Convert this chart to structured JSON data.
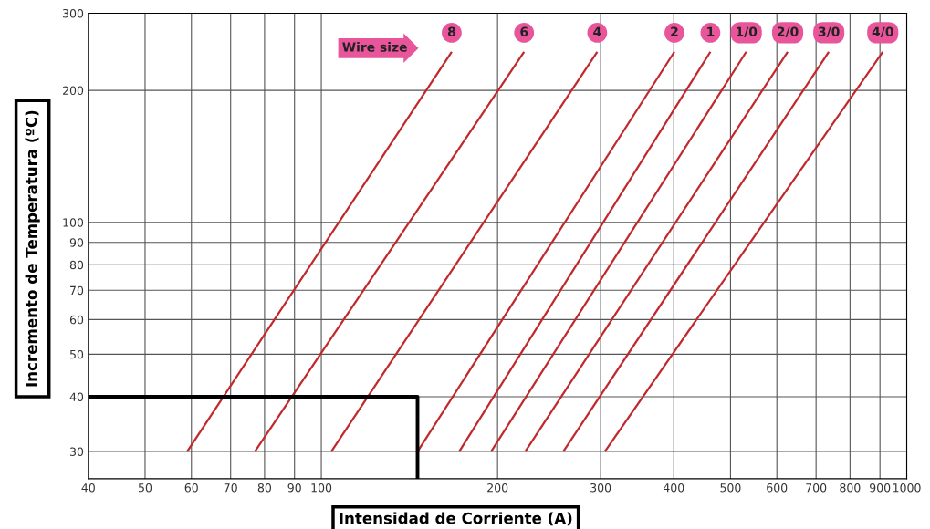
{
  "chart_data": {
    "type": "line",
    "xlabel": "Intensidad de Corriente (A)",
    "ylabel": "Incremento de Temperatura (ºC)",
    "annotations": [
      "Wire size"
    ],
    "log": "xy",
    "grid": true,
    "xlim": [
      40,
      1000
    ],
    "xticks": [
      40,
      50,
      60,
      70,
      80,
      90,
      100,
      200,
      300,
      400,
      500,
      600,
      700,
      800,
      900,
      1000
    ],
    "ylim": [
      26,
      300
    ],
    "yticks": [
      30,
      40,
      50,
      60,
      70,
      80,
      90,
      100,
      200,
      300
    ],
    "series": [
      {
        "name": "8",
        "color": "#c0282d",
        "x": [
          59,
          167
        ],
        "values": [
          30,
          245
        ]
      },
      {
        "name": "6",
        "color": "#c0282d",
        "x": [
          77,
          222
        ],
        "values": [
          30,
          245
        ]
      },
      {
        "name": "4",
        "color": "#c0282d",
        "x": [
          104,
          296
        ],
        "values": [
          30,
          245
        ]
      },
      {
        "name": "2",
        "color": "#c0282d",
        "x": [
          146,
          401
        ],
        "values": [
          30,
          245
        ]
      },
      {
        "name": "1",
        "color": "#c0282d",
        "x": [
          172,
          462
        ],
        "values": [
          30,
          245
        ]
      },
      {
        "name": "1/0",
        "color": "#c0282d",
        "x": [
          195,
          532
        ],
        "values": [
          30,
          245
        ]
      },
      {
        "name": "2/0",
        "color": "#c0282d",
        "x": [
          223,
          626
        ],
        "values": [
          30,
          245
        ]
      },
      {
        "name": "3/0",
        "color": "#c0282d",
        "x": [
          259,
          736
        ],
        "values": [
          30,
          245
        ]
      },
      {
        "name": "4/0",
        "color": "#c0282d",
        "x": [
          305,
          910
        ],
        "values": [
          30,
          245
        ]
      },
      {
        "color": "#000000",
        "x": [
          40,
          146,
          146
        ],
        "values": [
          40,
          40,
          26
        ]
      }
    ]
  }
}
